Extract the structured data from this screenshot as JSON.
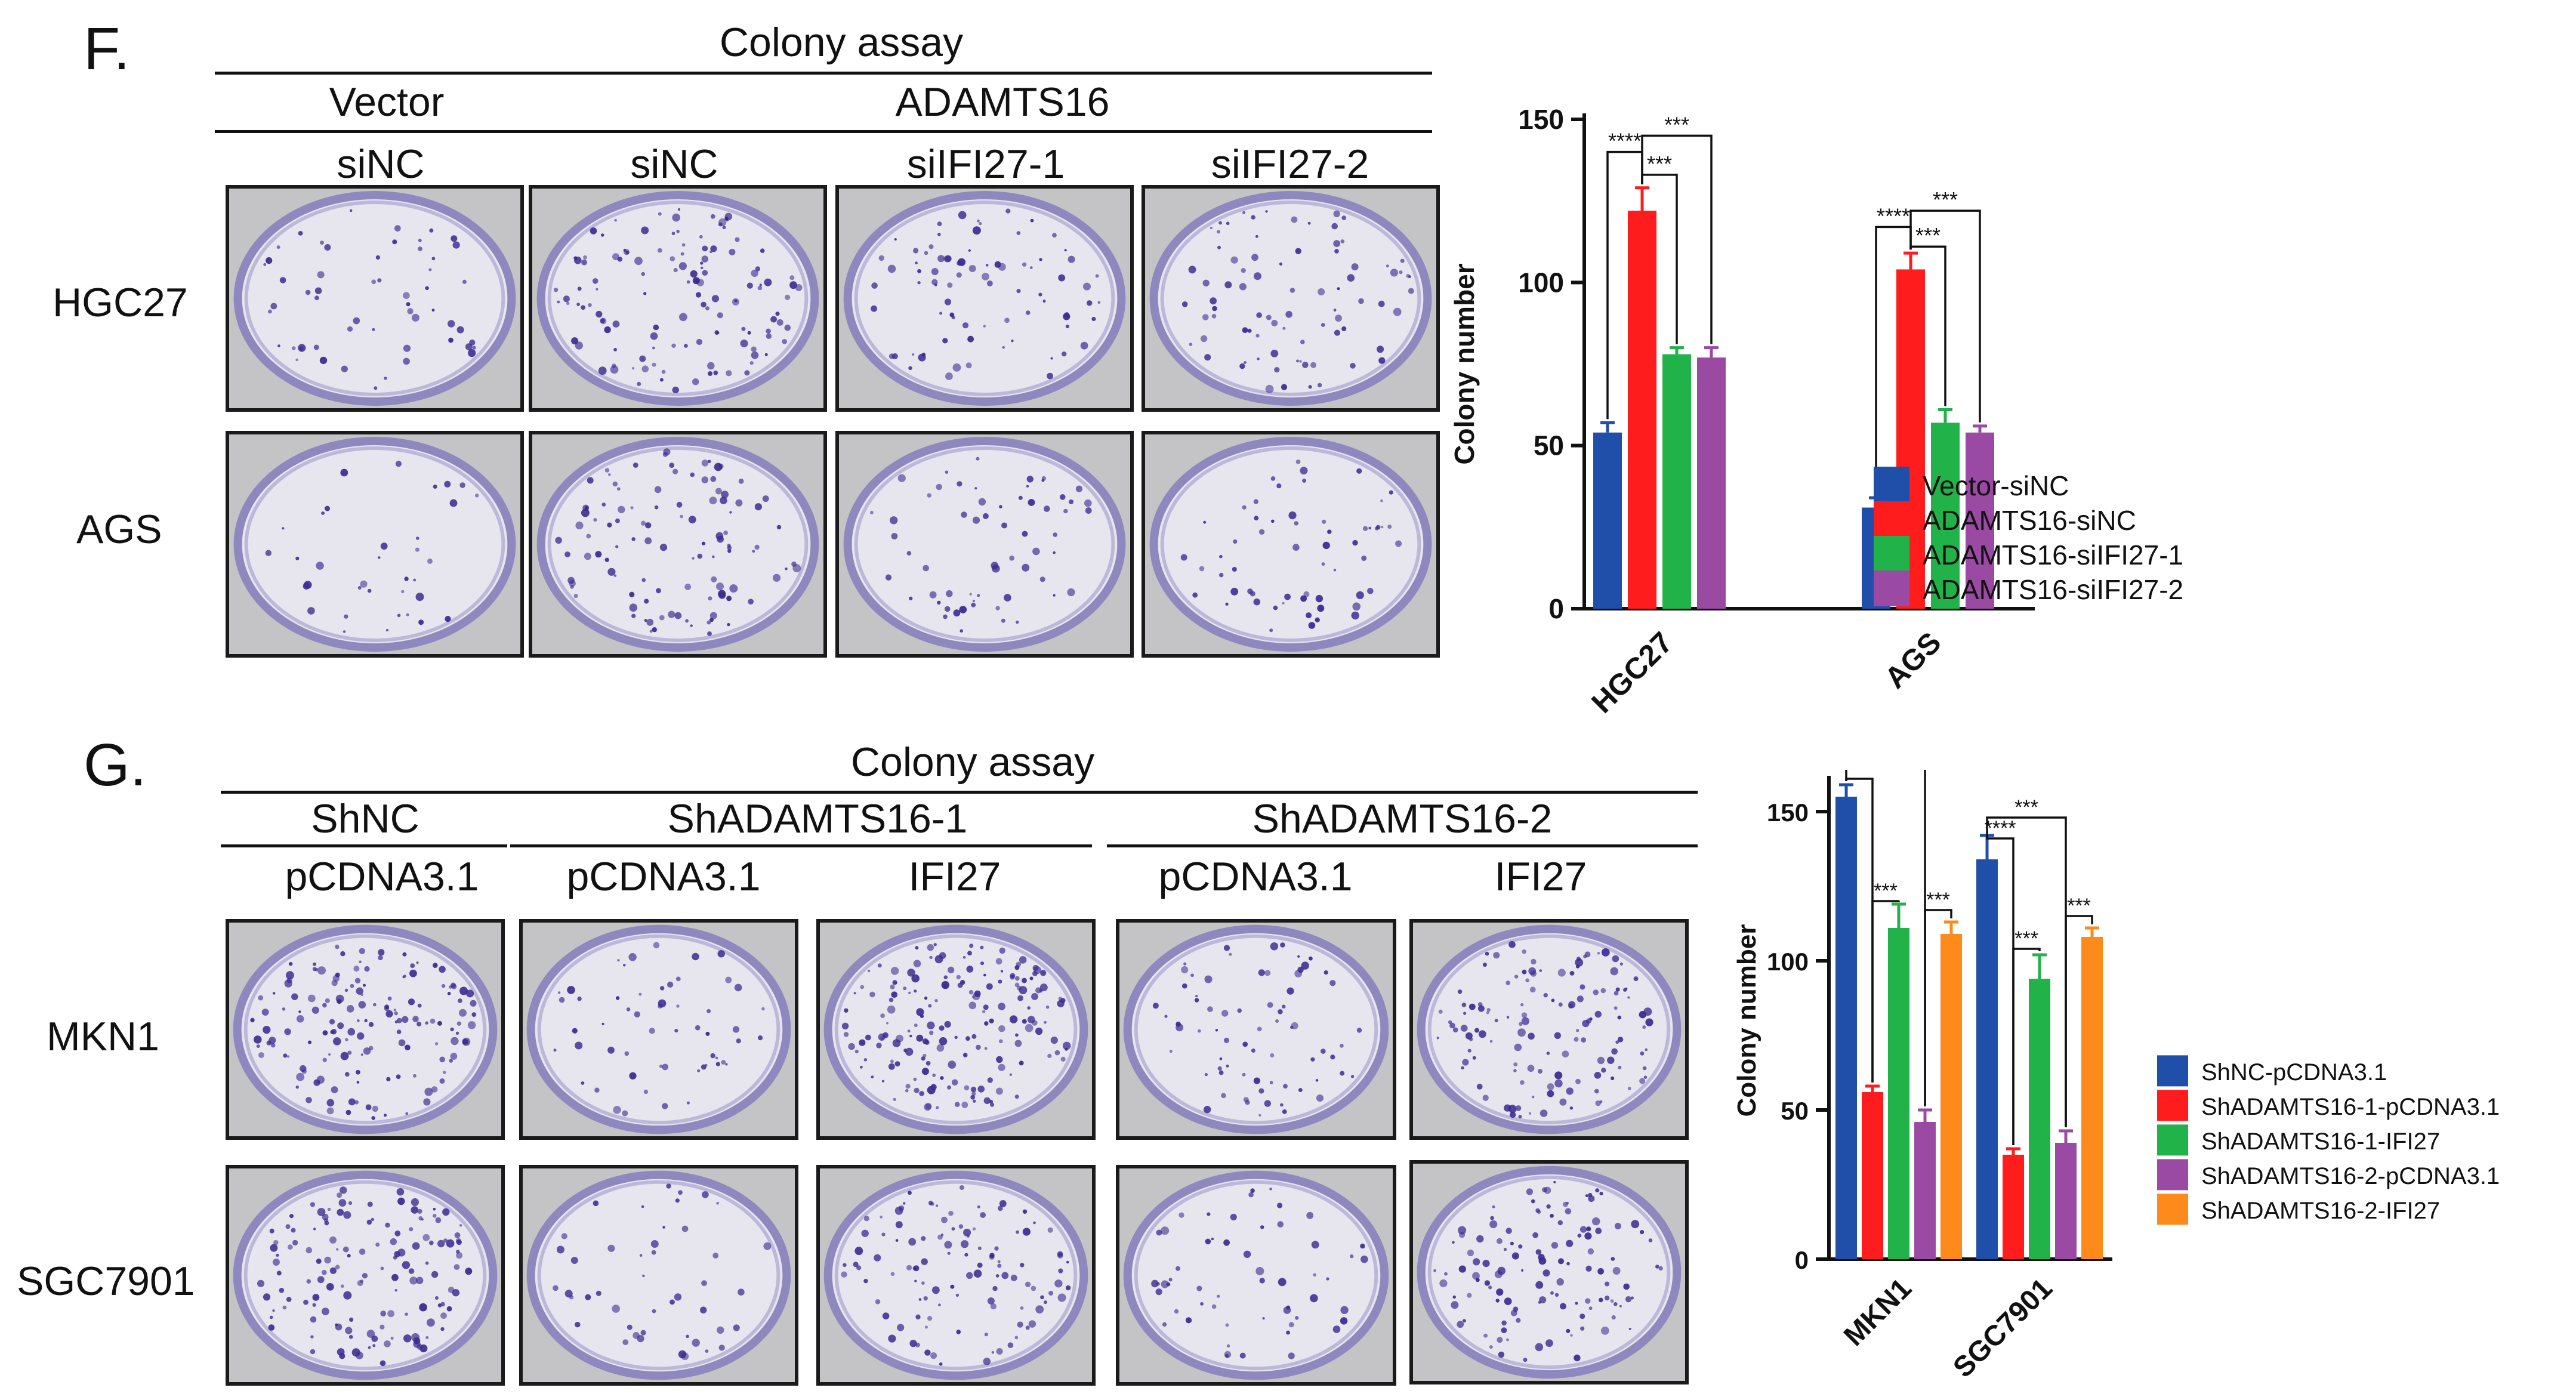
{
  "panel_f": {
    "letter": "F.",
    "assay_title": "Colony assay",
    "group_vector": "Vector",
    "group_adamts16": "ADAMTS16",
    "columns": [
      "siNC",
      "siNC",
      "siIFI27-1",
      "siIFI27-2"
    ],
    "rows": [
      "HGC27",
      "AGS"
    ]
  },
  "panel_g": {
    "letter": "G.",
    "assay_title": "Colony assay",
    "group_shnc": "ShNC",
    "group_sh1": "ShADAMTS16-1",
    "group_sh2": "ShADAMTS16-2",
    "columns": [
      "pCDNA3.1",
      "pCDNA3.1",
      "IFI27",
      "pCDNA3.1",
      "IFI27"
    ],
    "rows": [
      "MKN1",
      "SGC7901"
    ]
  },
  "chart_data": [
    {
      "type": "bar",
      "ylabel": "Colony number",
      "ylim": [
        0,
        150
      ],
      "yticks": [
        "0",
        "50",
        "100",
        "150"
      ],
      "categories": [
        "HGC27",
        "AGS"
      ],
      "series": [
        {
          "name": "Vector-siNC",
          "color": "#1f4fa8",
          "values": [
            54,
            31
          ],
          "errors": [
            3,
            3
          ]
        },
        {
          "name": "ADAMTS16-siNC",
          "color": "#ff1c1c",
          "values": [
            122,
            104
          ],
          "errors": [
            7,
            5
          ]
        },
        {
          "name": "ADAMTS16-siIFI27-1",
          "color": "#22b24a",
          "values": [
            78,
            57
          ],
          "errors": [
            2,
            4
          ]
        },
        {
          "name": "ADAMTS16-siIFI27-2",
          "color": "#9b4aa3",
          "values": [
            77,
            54
          ],
          "errors": [
            3,
            2
          ]
        }
      ],
      "significance": [
        "****",
        "***",
        "***"
      ],
      "legend_position": "right"
    },
    {
      "type": "bar",
      "ylabel": "Colony number",
      "ylim": [
        0,
        160
      ],
      "yticks": [
        "0",
        "50",
        "100",
        "150"
      ],
      "categories": [
        "MKN1",
        "SGC7901"
      ],
      "series": [
        {
          "name": "ShNC-pCDNA3.1",
          "color": "#1f4fa8",
          "values": [
            155,
            134
          ],
          "errors": [
            4,
            8
          ]
        },
        {
          "name": "ShADAMTS16-1-pCDNA3.1",
          "color": "#ff1c1c",
          "values": [
            56,
            35
          ],
          "errors": [
            2,
            2
          ]
        },
        {
          "name": "ShADAMTS16-1-IFI27",
          "color": "#22b24a",
          "values": [
            111,
            94
          ],
          "errors": [
            8,
            8
          ]
        },
        {
          "name": "ShADAMTS16-2-pCDNA3.1",
          "color": "#9b4aa3",
          "values": [
            46,
            39
          ],
          "errors": [
            4,
            4
          ]
        },
        {
          "name": "ShADAMTS16-2-IFI27",
          "color": "#ff8a1c",
          "values": [
            109,
            108
          ],
          "errors": [
            4,
            3
          ]
        }
      ],
      "significance": [
        "****",
        "****",
        "***",
        "***",
        "****",
        "***",
        "***",
        "***"
      ],
      "legend_position": "right"
    }
  ]
}
